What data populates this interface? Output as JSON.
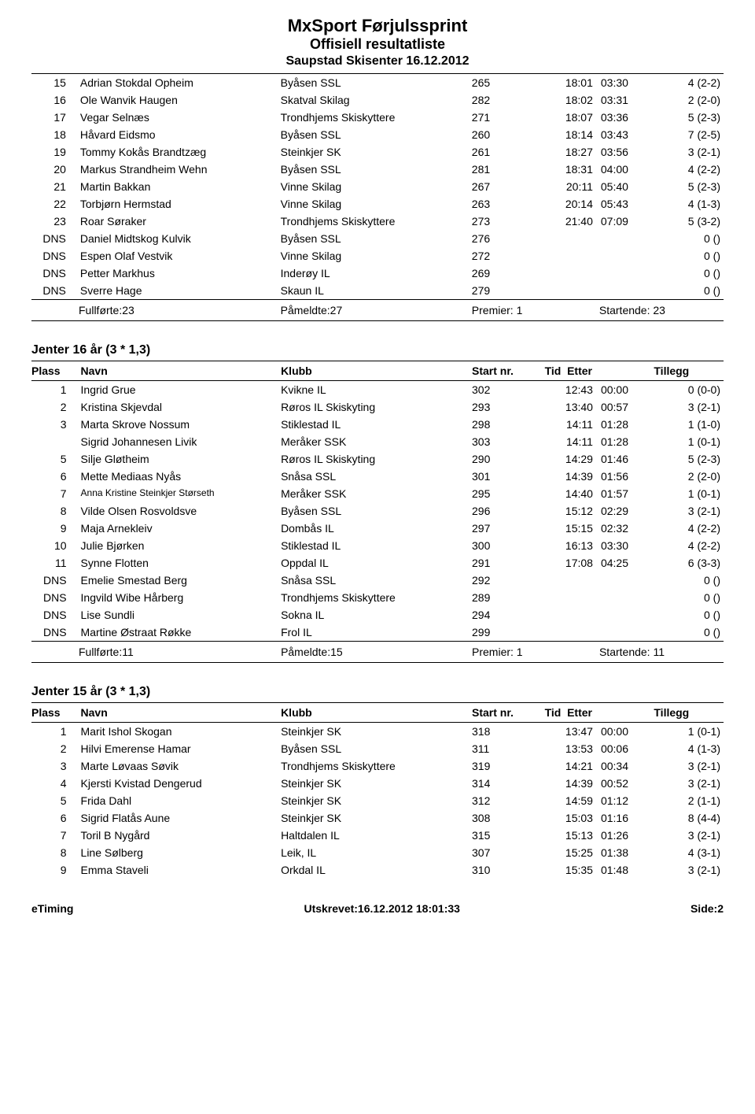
{
  "header": {
    "title": "MxSport Førjulssprint",
    "subtitle": "Offisiell resultatliste",
    "venue": "Saupstad Skisenter 16.12.2012"
  },
  "columns": {
    "plass": "Plass",
    "navn": "Navn",
    "klubb": "Klubb",
    "start": "Start nr.",
    "tid": "Tid",
    "etter": "Etter",
    "tillegg": "Tillegg"
  },
  "tables": [
    {
      "title": null,
      "show_header": false,
      "top_border": true,
      "rows": [
        {
          "plass": "15",
          "navn": "Adrian Stokdal Opheim",
          "klubb": "Byåsen SSL",
          "start": "265",
          "tid": "18:01",
          "etter": "03:30",
          "tillegg": "4 (2-2)"
        },
        {
          "plass": "16",
          "navn": "Ole Wanvik Haugen",
          "klubb": "Skatval Skilag",
          "start": "282",
          "tid": "18:02",
          "etter": "03:31",
          "tillegg": "2 (2-0)"
        },
        {
          "plass": "17",
          "navn": "Vegar Selnæs",
          "klubb": "Trondhjems Skiskyttere",
          "start": "271",
          "tid": "18:07",
          "etter": "03:36",
          "tillegg": "5 (2-3)"
        },
        {
          "plass": "18",
          "navn": "Håvard Eidsmo",
          "klubb": "Byåsen SSL",
          "start": "260",
          "tid": "18:14",
          "etter": "03:43",
          "tillegg": "7 (2-5)"
        },
        {
          "plass": "19",
          "navn": "Tommy Kokås Brandtzæg",
          "klubb": "Steinkjer SK",
          "start": "261",
          "tid": "18:27",
          "etter": "03:56",
          "tillegg": "3 (2-1)"
        },
        {
          "plass": "20",
          "navn": "Markus Strandheim Wehn",
          "klubb": "Byåsen SSL",
          "start": "281",
          "tid": "18:31",
          "etter": "04:00",
          "tillegg": "4 (2-2)"
        },
        {
          "plass": "21",
          "navn": "Martin Bakkan",
          "klubb": "Vinne Skilag",
          "start": "267",
          "tid": "20:11",
          "etter": "05:40",
          "tillegg": "5 (2-3)"
        },
        {
          "plass": "22",
          "navn": "Torbjørn Hermstad",
          "klubb": "Vinne Skilag",
          "start": "263",
          "tid": "20:14",
          "etter": "05:43",
          "tillegg": "4 (1-3)"
        },
        {
          "plass": "23",
          "navn": "Roar Søraker",
          "klubb": "Trondhjems Skiskyttere",
          "start": "273",
          "tid": "21:40",
          "etter": "07:09",
          "tillegg": "5 (3-2)"
        },
        {
          "plass": "DNS",
          "navn": "Daniel Midtskog Kulvik",
          "klubb": "Byåsen SSL",
          "start": "276",
          "tid": "",
          "etter": "",
          "tillegg": "0 ()"
        },
        {
          "plass": "DNS",
          "navn": "Espen Olaf Vestvik",
          "klubb": "Vinne Skilag",
          "start": "272",
          "tid": "",
          "etter": "",
          "tillegg": "0 ()"
        },
        {
          "plass": "DNS",
          "navn": "Petter Markhus",
          "klubb": "Inderøy IL",
          "start": "269",
          "tid": "",
          "etter": "",
          "tillegg": "0 ()"
        },
        {
          "plass": "DNS",
          "navn": "Sverre Hage",
          "klubb": "Skaun IL",
          "start": "279",
          "tid": "",
          "etter": "",
          "tillegg": "0 ()"
        }
      ],
      "summary": {
        "fullforte": "Fullførte:23",
        "pameldte": "Påmeldte:27",
        "premier": "Premier: 1",
        "startende": "Startende: 23"
      }
    },
    {
      "title": "Jenter 16 år (3 * 1,3)",
      "show_header": true,
      "rows": [
        {
          "plass": "1",
          "navn": "Ingrid Grue",
          "klubb": "Kvikne IL",
          "start": "302",
          "tid": "12:43",
          "etter": "00:00",
          "tillegg": "0 (0-0)"
        },
        {
          "plass": "2",
          "navn": "Kristina Skjevdal",
          "klubb": "Røros IL Skiskyting",
          "start": "293",
          "tid": "13:40",
          "etter": "00:57",
          "tillegg": "3 (2-1)"
        },
        {
          "plass": "3",
          "navn": "Marta Skrove Nossum",
          "klubb": "Stiklestad IL",
          "start": "298",
          "tid": "14:11",
          "etter": "01:28",
          "tillegg": "1 (1-0)"
        },
        {
          "plass": "",
          "navn": "Sigrid Johannesen Livik",
          "klubb": "Meråker SSK",
          "start": "303",
          "tid": "14:11",
          "etter": "01:28",
          "tillegg": "1 (0-1)"
        },
        {
          "plass": "5",
          "navn": "Silje Gløtheim",
          "klubb": "Røros IL Skiskyting",
          "start": "290",
          "tid": "14:29",
          "etter": "01:46",
          "tillegg": "5 (2-3)"
        },
        {
          "plass": "6",
          "navn": "Mette Mediaas Nyås",
          "klubb": "Snåsa SSL",
          "start": "301",
          "tid": "14:39",
          "etter": "01:56",
          "tillegg": "2 (2-0)"
        },
        {
          "plass": "7",
          "navn": "Anna Kristine Steinkjer Størseth",
          "small": true,
          "klubb": "Meråker SSK",
          "start": "295",
          "tid": "14:40",
          "etter": "01:57",
          "tillegg": "1 (0-1)"
        },
        {
          "plass": "8",
          "navn": "Vilde Olsen Rosvoldsve",
          "klubb": "Byåsen SSL",
          "start": "296",
          "tid": "15:12",
          "etter": "02:29",
          "tillegg": "3 (2-1)"
        },
        {
          "plass": "9",
          "navn": "Maja Arnekleiv",
          "klubb": "Dombås IL",
          "start": "297",
          "tid": "15:15",
          "etter": "02:32",
          "tillegg": "4 (2-2)"
        },
        {
          "plass": "10",
          "navn": "Julie Bjørken",
          "klubb": "Stiklestad IL",
          "start": "300",
          "tid": "16:13",
          "etter": "03:30",
          "tillegg": "4 (2-2)"
        },
        {
          "plass": "11",
          "navn": "Synne Flotten",
          "klubb": "Oppdal IL",
          "start": "291",
          "tid": "17:08",
          "etter": "04:25",
          "tillegg": "6 (3-3)"
        },
        {
          "plass": "DNS",
          "navn": "Emelie Smestad Berg",
          "klubb": "Snåsa SSL",
          "start": "292",
          "tid": "",
          "etter": "",
          "tillegg": "0 ()"
        },
        {
          "plass": "DNS",
          "navn": "Ingvild Wibe Hårberg",
          "klubb": "Trondhjems Skiskyttere",
          "start": "289",
          "tid": "",
          "etter": "",
          "tillegg": "0 ()"
        },
        {
          "plass": "DNS",
          "navn": "Lise Sundli",
          "klubb": "Sokna IL",
          "start": "294",
          "tid": "",
          "etter": "",
          "tillegg": "0 ()"
        },
        {
          "plass": "DNS",
          "navn": "Martine Østraat Røkke",
          "klubb": "Frol IL",
          "start": "299",
          "tid": "",
          "etter": "",
          "tillegg": "0 ()"
        }
      ],
      "summary": {
        "fullforte": "Fullførte:11",
        "pameldte": "Påmeldte:15",
        "premier": "Premier: 1",
        "startende": "Startende: 11"
      }
    },
    {
      "title": "Jenter 15 år (3 * 1,3)",
      "show_header": true,
      "rows": [
        {
          "plass": "1",
          "navn": "Marit Ishol Skogan",
          "klubb": "Steinkjer SK",
          "start": "318",
          "tid": "13:47",
          "etter": "00:00",
          "tillegg": "1 (0-1)"
        },
        {
          "plass": "2",
          "navn": "Hilvi Emerense Hamar",
          "klubb": "Byåsen SSL",
          "start": "311",
          "tid": "13:53",
          "etter": "00:06",
          "tillegg": "4 (1-3)"
        },
        {
          "plass": "3",
          "navn": "Marte Løvaas Søvik",
          "klubb": "Trondhjems Skiskyttere",
          "start": "319",
          "tid": "14:21",
          "etter": "00:34",
          "tillegg": "3 (2-1)"
        },
        {
          "plass": "4",
          "navn": "Kjersti Kvistad Dengerud",
          "klubb": "Steinkjer SK",
          "start": "314",
          "tid": "14:39",
          "etter": "00:52",
          "tillegg": "3 (2-1)"
        },
        {
          "plass": "5",
          "navn": "Frida Dahl",
          "klubb": "Steinkjer SK",
          "start": "312",
          "tid": "14:59",
          "etter": "01:12",
          "tillegg": "2 (1-1)"
        },
        {
          "plass": "6",
          "navn": "Sigrid Flatås Aune",
          "klubb": "Steinkjer SK",
          "start": "308",
          "tid": "15:03",
          "etter": "01:16",
          "tillegg": "8 (4-4)"
        },
        {
          "plass": "7",
          "navn": "Toril B Nygård",
          "klubb": "Haltdalen IL",
          "start": "315",
          "tid": "15:13",
          "etter": "01:26",
          "tillegg": "3 (2-1)"
        },
        {
          "plass": "8",
          "navn": "Line Sølberg",
          "klubb": "Leik, IL",
          "start": "307",
          "tid": "15:25",
          "etter": "01:38",
          "tillegg": "4 (3-1)"
        },
        {
          "plass": "9",
          "navn": "Emma Staveli",
          "klubb": "Orkdal IL",
          "start": "310",
          "tid": "15:35",
          "etter": "01:48",
          "tillegg": "3 (2-1)"
        }
      ],
      "summary": null
    }
  ],
  "footer": {
    "left": "eTiming",
    "center": "Utskrevet:16.12.2012 18:01:33",
    "right": "Side:2"
  }
}
